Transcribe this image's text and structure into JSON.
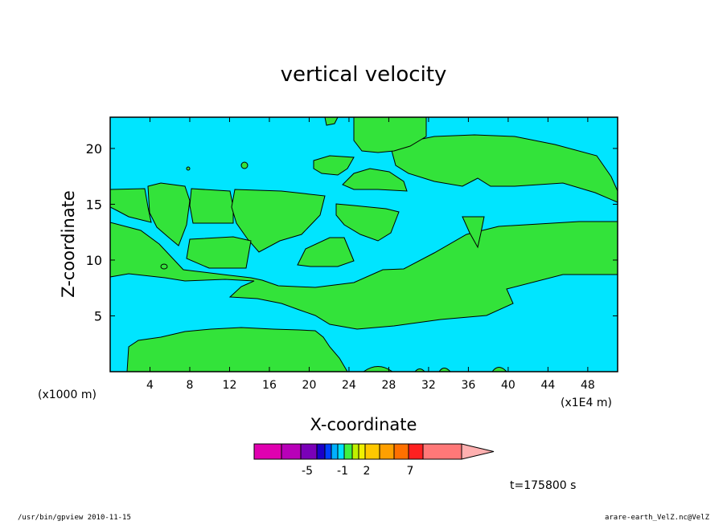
{
  "chart_data": {
    "type": "contour",
    "title": "vertical velocity",
    "xlabel": "X-coordinate",
    "ylabel": "Z-coordinate",
    "x_unit_note": "(x1000 m)",
    "x_scale_note": "(x1E4 m)",
    "xlim": [
      0,
      51
    ],
    "ylim": [
      0,
      22.8
    ],
    "x_ticks": [
      4,
      8,
      12,
      16,
      20,
      24,
      28,
      32,
      36,
      40,
      44,
      48
    ],
    "y_ticks": [
      5,
      10,
      15,
      20
    ],
    "fill_colors": {
      "background": "#00e5ff",
      "positive_region": "#33e33a"
    },
    "colorbar": {
      "colors": [
        "#e000b0",
        "#b800b8",
        "#7a00b8",
        "#1a00c8",
        "#0040ff",
        "#00b0ff",
        "#00e0ff",
        "#40f040",
        "#c0f000",
        "#f0f000",
        "#ffc800",
        "#ffa000",
        "#ff7000",
        "#ff2020",
        "#ff7878",
        "#ffb0b0"
      ],
      "tick_labels": [
        "-5",
        "-1",
        "2",
        "7"
      ]
    },
    "annotation": "t=175800 s"
  },
  "footer": {
    "left": "/usr/bin/gpview   2010-11-15",
    "right": "arare-earth_VelZ.nc@VelZ"
  }
}
